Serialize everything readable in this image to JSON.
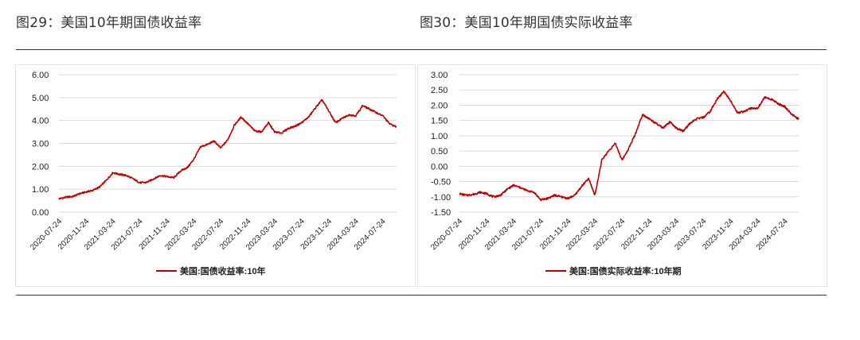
{
  "figures": [
    {
      "title": "图29：美国10年期国债收益率"
    },
    {
      "title": "图30：美国10年期国债实际收益率"
    }
  ],
  "colors": {
    "line": "#c00000",
    "grid": "#d9d9d9",
    "axis_text": "#222222"
  },
  "chart_data": [
    {
      "type": "line",
      "yticks": [
        "6.00",
        "5.00",
        "4.00",
        "3.00",
        "2.00",
        "1.00",
        "0.00"
      ],
      "ylim": [
        0,
        6
      ],
      "xticks": [
        "2020-07-24",
        "2020-11-24",
        "2021-03-24",
        "2021-07-24",
        "2021-11-24",
        "2022-03-24",
        "2022-07-24",
        "2022-11-24",
        "2023-03-24",
        "2023-07-24",
        "2023-11-24",
        "2024-03-24",
        "2024-07-24"
      ],
      "grid": true,
      "legend_position": "bottom",
      "series": [
        {
          "name": "美国:国债收益率:10年",
          "x": [
            "2020-07-24",
            "2020-08-24",
            "2020-09-24",
            "2020-10-24",
            "2020-11-24",
            "2020-12-24",
            "2021-01-24",
            "2021-02-24",
            "2021-03-24",
            "2021-04-24",
            "2021-05-24",
            "2021-06-24",
            "2021-07-24",
            "2021-08-24",
            "2021-09-24",
            "2021-10-24",
            "2021-11-24",
            "2021-12-24",
            "2022-01-24",
            "2022-02-24",
            "2022-03-24",
            "2022-04-24",
            "2022-05-24",
            "2022-06-24",
            "2022-07-24",
            "2022-08-24",
            "2022-09-24",
            "2022-10-24",
            "2022-11-24",
            "2022-12-24",
            "2023-01-24",
            "2023-02-24",
            "2023-03-24",
            "2023-04-24",
            "2023-05-24",
            "2023-06-24",
            "2023-07-24",
            "2023-08-24",
            "2023-09-24",
            "2023-10-24",
            "2023-11-24",
            "2023-12-24",
            "2024-01-24",
            "2024-02-24",
            "2024-03-24",
            "2024-04-24",
            "2024-05-24",
            "2024-06-24",
            "2024-07-24",
            "2024-08-24",
            "2024-09-24"
          ],
          "values": [
            0.58,
            0.65,
            0.68,
            0.8,
            0.88,
            0.95,
            1.1,
            1.4,
            1.72,
            1.65,
            1.6,
            1.45,
            1.28,
            1.3,
            1.45,
            1.6,
            1.55,
            1.5,
            1.8,
            1.95,
            2.3,
            2.85,
            2.95,
            3.1,
            2.8,
            3.15,
            3.8,
            4.15,
            3.85,
            3.55,
            3.5,
            3.9,
            3.5,
            3.45,
            3.65,
            3.75,
            3.9,
            4.15,
            4.55,
            4.9,
            4.4,
            3.9,
            4.1,
            4.25,
            4.2,
            4.65,
            4.5,
            4.35,
            4.2,
            3.85,
            3.72
          ]
        }
      ]
    },
    {
      "type": "line",
      "yticks": [
        "3.00",
        "2.50",
        "2.00",
        "1.50",
        "1.00",
        "0.50",
        "0.00",
        "-0.50",
        "-1.00",
        "-1.50"
      ],
      "ylim": [
        -1.5,
        3.0
      ],
      "xticks": [
        "2020-07-24",
        "2020-11-24",
        "2021-03-24",
        "2021-07-24",
        "2021-11-24",
        "2022-03-24",
        "2022-07-24",
        "2022-11-24",
        "2023-03-24",
        "2023-07-24",
        "2023-11-24",
        "2024-03-24",
        "2024-07-24"
      ],
      "grid": true,
      "legend_position": "bottom",
      "series": [
        {
          "name": "美国:国债实际收益率:10年期",
          "x": [
            "2020-07-24",
            "2020-08-24",
            "2020-09-24",
            "2020-10-24",
            "2020-11-24",
            "2020-12-24",
            "2021-01-24",
            "2021-02-24",
            "2021-03-24",
            "2021-04-24",
            "2021-05-24",
            "2021-06-24",
            "2021-07-24",
            "2021-08-24",
            "2021-09-24",
            "2021-10-24",
            "2021-11-24",
            "2021-12-24",
            "2022-01-24",
            "2022-02-24",
            "2022-03-24",
            "2022-04-24",
            "2022-05-24",
            "2022-06-24",
            "2022-07-24",
            "2022-08-24",
            "2022-09-24",
            "2022-10-24",
            "2022-11-24",
            "2022-12-24",
            "2023-01-24",
            "2023-02-24",
            "2023-03-24",
            "2023-04-24",
            "2023-05-24",
            "2023-06-24",
            "2023-07-24",
            "2023-08-24",
            "2023-09-24",
            "2023-10-24",
            "2023-11-24",
            "2023-12-24",
            "2024-01-24",
            "2024-02-24",
            "2024-03-24",
            "2024-04-24",
            "2024-05-24",
            "2024-06-24",
            "2024-07-24",
            "2024-08-24",
            "2024-09-24"
          ],
          "values": [
            -0.9,
            -0.95,
            -0.92,
            -0.85,
            -0.9,
            -1.0,
            -0.95,
            -0.75,
            -0.62,
            -0.7,
            -0.8,
            -0.85,
            -1.1,
            -1.05,
            -0.95,
            -1.0,
            -1.05,
            -0.95,
            -0.65,
            -0.4,
            -0.95,
            0.2,
            0.5,
            0.75,
            0.2,
            0.6,
            1.1,
            1.7,
            1.55,
            1.4,
            1.25,
            1.45,
            1.25,
            1.15,
            1.4,
            1.55,
            1.6,
            1.8,
            2.2,
            2.45,
            2.15,
            1.75,
            1.8,
            1.9,
            1.9,
            2.25,
            2.2,
            2.05,
            1.95,
            1.7,
            1.55
          ]
        }
      ]
    }
  ]
}
